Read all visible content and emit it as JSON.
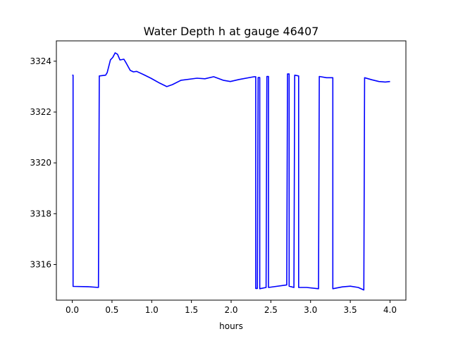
{
  "chart_data": {
    "type": "line",
    "title": "Water Depth h at gauge 46407",
    "xlabel": "hours",
    "ylabel": "",
    "xlim": [
      -0.2,
      4.2
    ],
    "ylim": [
      3314.6,
      3324.8
    ],
    "xticks": [
      0.0,
      0.5,
      1.0,
      1.5,
      2.0,
      2.5,
      3.0,
      3.5,
      4.0
    ],
    "xtick_labels": [
      "0.0",
      "0.5",
      "1.0",
      "1.5",
      "2.0",
      "2.5",
      "3.0",
      "3.5",
      "4.0"
    ],
    "yticks": [
      3316,
      3318,
      3320,
      3322,
      3324
    ],
    "ytick_labels": [
      "3316",
      "3318",
      "3320",
      "3322",
      "3324"
    ],
    "grid": false,
    "series": [
      {
        "name": "h",
        "color": "#0000ff",
        "points": [
          [
            0.0,
            3323.45
          ],
          [
            0.01,
            3323.45
          ],
          [
            0.01,
            3315.14
          ],
          [
            0.2,
            3315.13
          ],
          [
            0.33,
            3315.1
          ],
          [
            0.34,
            3323.42
          ],
          [
            0.42,
            3323.45
          ],
          [
            0.44,
            3323.55
          ],
          [
            0.48,
            3324.05
          ],
          [
            0.51,
            3324.15
          ],
          [
            0.54,
            3324.33
          ],
          [
            0.57,
            3324.27
          ],
          [
            0.6,
            3324.05
          ],
          [
            0.65,
            3324.08
          ],
          [
            0.68,
            3323.92
          ],
          [
            0.73,
            3323.64
          ],
          [
            0.77,
            3323.58
          ],
          [
            0.81,
            3323.6
          ],
          [
            0.9,
            3323.47
          ],
          [
            0.99,
            3323.33
          ],
          [
            1.1,
            3323.14
          ],
          [
            1.19,
            3323.0
          ],
          [
            1.26,
            3323.08
          ],
          [
            1.37,
            3323.25
          ],
          [
            1.57,
            3323.33
          ],
          [
            1.67,
            3323.31
          ],
          [
            1.78,
            3323.39
          ],
          [
            1.9,
            3323.25
          ],
          [
            1.99,
            3323.2
          ],
          [
            2.1,
            3323.28
          ],
          [
            2.29,
            3323.39
          ],
          [
            2.31,
            3323.39
          ],
          [
            2.31,
            3315.06
          ],
          [
            2.33,
            3315.06
          ],
          [
            2.34,
            3323.36
          ],
          [
            2.36,
            3323.36
          ],
          [
            2.36,
            3315.05
          ],
          [
            2.44,
            3315.1
          ],
          [
            2.45,
            3323.4
          ],
          [
            2.47,
            3323.4
          ],
          [
            2.47,
            3315.1
          ],
          [
            2.7,
            3315.2
          ],
          [
            2.71,
            3323.5
          ],
          [
            2.73,
            3323.5
          ],
          [
            2.73,
            3315.15
          ],
          [
            2.79,
            3315.1
          ],
          [
            2.8,
            3323.45
          ],
          [
            2.85,
            3323.42
          ],
          [
            2.85,
            3315.1
          ],
          [
            2.95,
            3315.1
          ],
          [
            3.1,
            3315.05
          ],
          [
            3.11,
            3323.4
          ],
          [
            3.2,
            3323.35
          ],
          [
            3.28,
            3323.35
          ],
          [
            3.28,
            3315.05
          ],
          [
            3.4,
            3315.12
          ],
          [
            3.5,
            3315.15
          ],
          [
            3.6,
            3315.1
          ],
          [
            3.67,
            3315.0
          ],
          [
            3.68,
            3323.35
          ],
          [
            3.77,
            3323.27
          ],
          [
            3.86,
            3323.2
          ],
          [
            3.94,
            3323.18
          ],
          [
            4.0,
            3323.2
          ]
        ]
      }
    ]
  }
}
